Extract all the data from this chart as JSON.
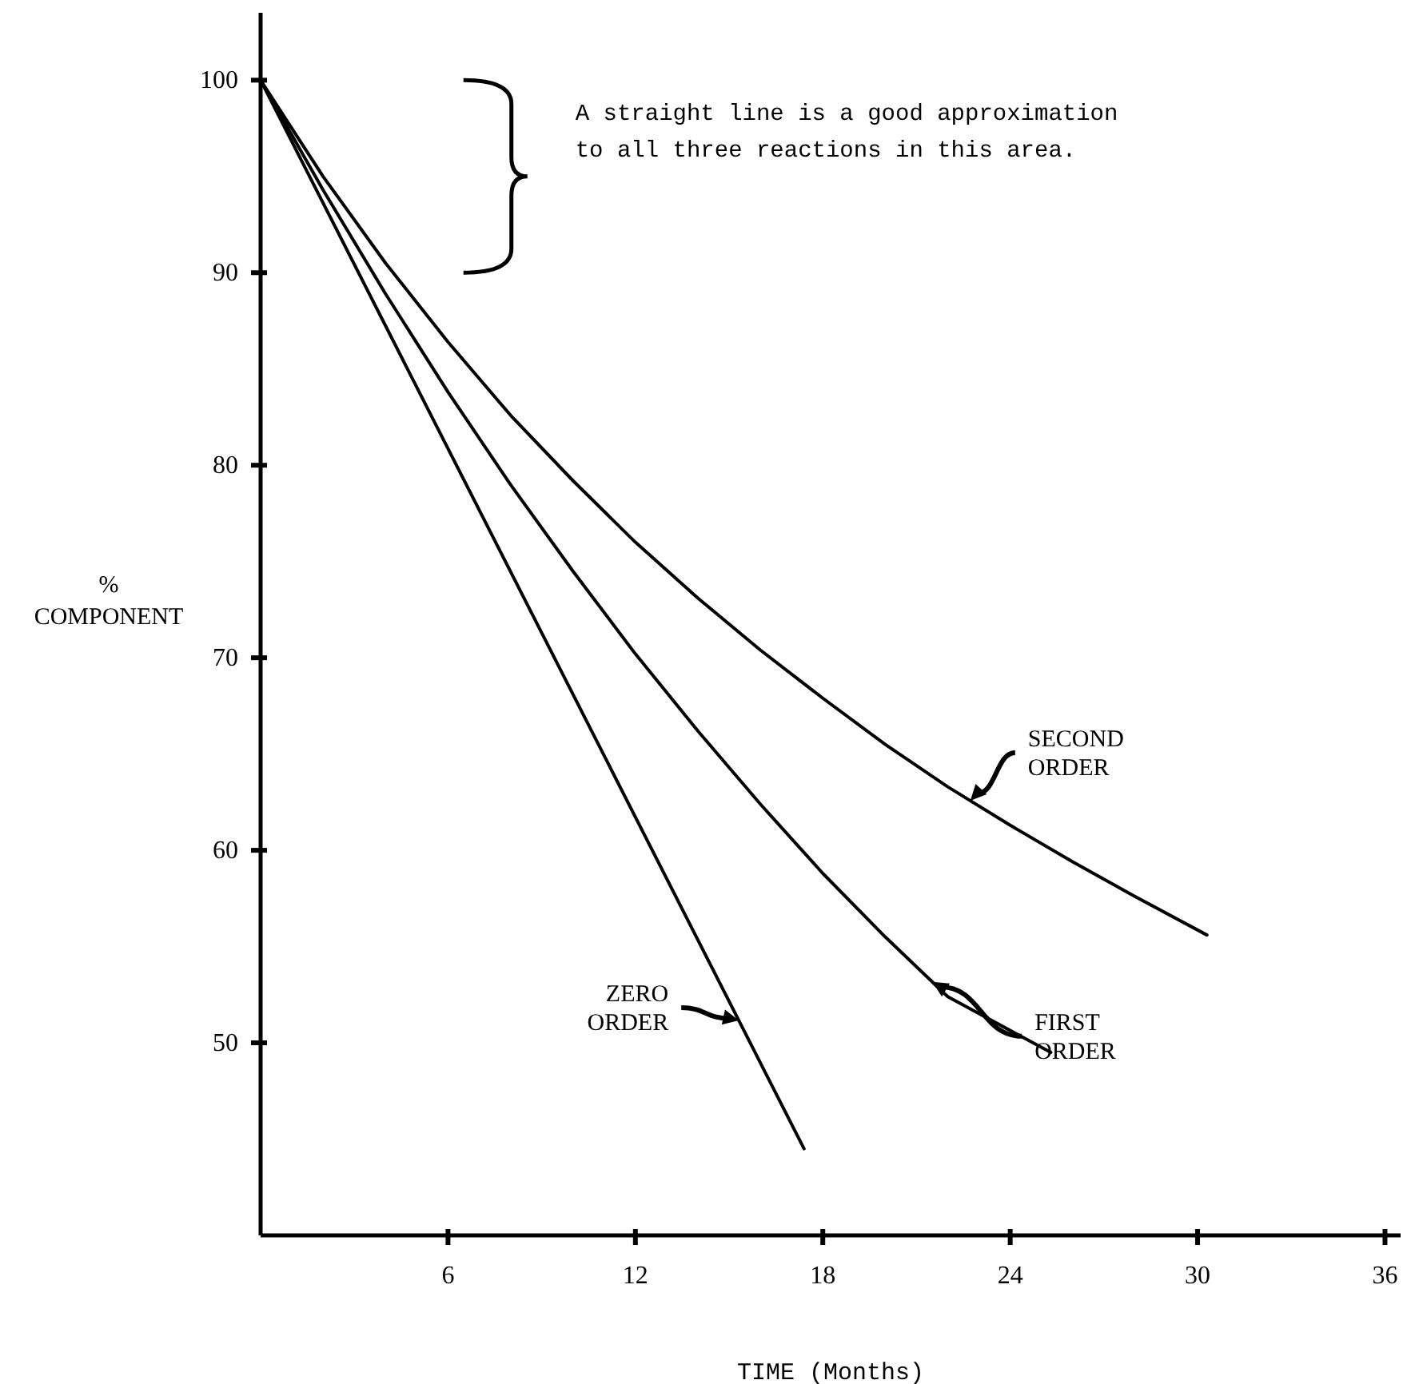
{
  "chart_data": {
    "type": "line",
    "xlabel": "TIME (Months)",
    "ylabel": "% COMPONENT",
    "xlim": [
      0,
      36.5
    ],
    "ylim": [
      40,
      103.5
    ],
    "xticks": [
      6,
      12,
      18,
      24,
      30,
      36
    ],
    "yticks": [
      50,
      60,
      70,
      80,
      90,
      100
    ],
    "grid": false,
    "marker": "none",
    "line_style": "solid",
    "series": [
      {
        "name": "ZERO ORDER",
        "color": "#000000",
        "x": [
          0,
          17.4
        ],
        "values": [
          100,
          44.5
        ]
      },
      {
        "name": "FIRST ORDER",
        "color": "#000000",
        "x": [
          0,
          2,
          4,
          6,
          8,
          10,
          12,
          14,
          16,
          18,
          20,
          22,
          25.3
        ],
        "values": [
          100,
          94.3,
          88.9,
          83.8,
          79,
          74.5,
          70.2,
          66.2,
          62.4,
          58.8,
          55.5,
          52.4,
          49.5
        ]
      },
      {
        "name": "SECOND ORDER",
        "color": "#000000",
        "x": [
          0,
          2,
          4,
          6,
          8,
          10,
          12,
          14,
          16,
          18,
          20,
          22,
          24,
          26,
          28,
          30.3
        ],
        "values": [
          100,
          95,
          90.5,
          86.4,
          82.6,
          79.2,
          76,
          73.1,
          70.4,
          67.9,
          65.5,
          63.3,
          61.3,
          59.4,
          57.6,
          55.6
        ]
      }
    ],
    "annotations": [
      "A straight line is a good approximation to all three reactions in this area."
    ]
  }
}
